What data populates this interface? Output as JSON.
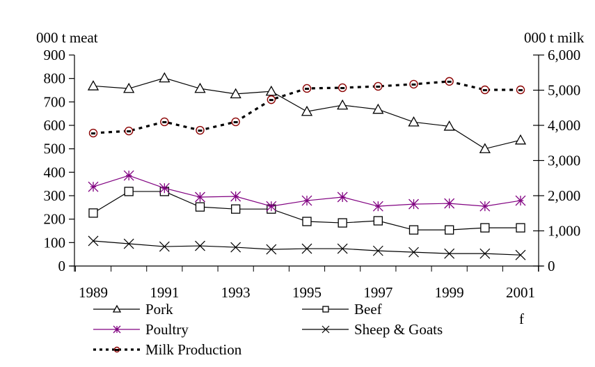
{
  "chart_data": {
    "type": "line",
    "title": "",
    "xlabel": "",
    "ylabel": "000 t meat",
    "y2label": "000 t milk",
    "ylim": [
      0,
      900
    ],
    "y2lim": [
      0,
      6000
    ],
    "yticks": [
      0,
      100,
      200,
      300,
      400,
      500,
      600,
      700,
      800,
      900
    ],
    "ytick_labels": [
      "0",
      "100",
      "200",
      "300",
      "400",
      "500",
      "600",
      "700",
      "800",
      "900"
    ],
    "y2ticks": [
      0,
      1000,
      2000,
      3000,
      4000,
      5000,
      6000
    ],
    "y2tick_labels": [
      "0",
      "1,000",
      "2,000",
      "3,000",
      "4,000",
      "5,000",
      "6,000"
    ],
    "x": [
      1989,
      1990,
      1991,
      1992,
      1993,
      1994,
      1995,
      1996,
      1997,
      1998,
      1999,
      2000,
      2001
    ],
    "xtick_labels": [
      "1989",
      "1991",
      "1993",
      "1995",
      "1997",
      "1999",
      "2001"
    ],
    "forecast_note": "f",
    "grid": false,
    "legend_position": "bottom",
    "series": [
      {
        "name": "Pork",
        "axis": "left",
        "color": "#000000",
        "marker": "triangle",
        "dash": "solid",
        "values": [
          768,
          757,
          802,
          757,
          734,
          745,
          659,
          686,
          668,
          614,
          596,
          500,
          537
        ]
      },
      {
        "name": "Beef",
        "axis": "left",
        "color": "#000000",
        "marker": "square",
        "dash": "solid",
        "values": [
          226,
          318,
          318,
          252,
          243,
          243,
          190,
          184,
          193,
          154,
          154,
          163,
          163
        ]
      },
      {
        "name": "Poultry",
        "axis": "left",
        "color": "#800080",
        "marker": "asterisk",
        "dash": "solid",
        "values": [
          338,
          386,
          332,
          294,
          297,
          255,
          279,
          294,
          255,
          264,
          267,
          255,
          279
        ]
      },
      {
        "name": "Sheep & Goats",
        "axis": "left",
        "color": "#000000",
        "marker": "x",
        "dash": "solid",
        "values": [
          107,
          95,
          83,
          86,
          80,
          71,
          74,
          74,
          65,
          59,
          53,
          53,
          47
        ]
      },
      {
        "name": "Milk Production",
        "axis": "right",
        "color": "#000000",
        "marker": "circle",
        "marker_color": "#8b0000",
        "dash": "dotted",
        "values": [
          3780,
          3840,
          4100,
          3860,
          4100,
          4730,
          5050,
          5070,
          5110,
          5170,
          5250,
          5010,
          5010
        ]
      }
    ]
  }
}
